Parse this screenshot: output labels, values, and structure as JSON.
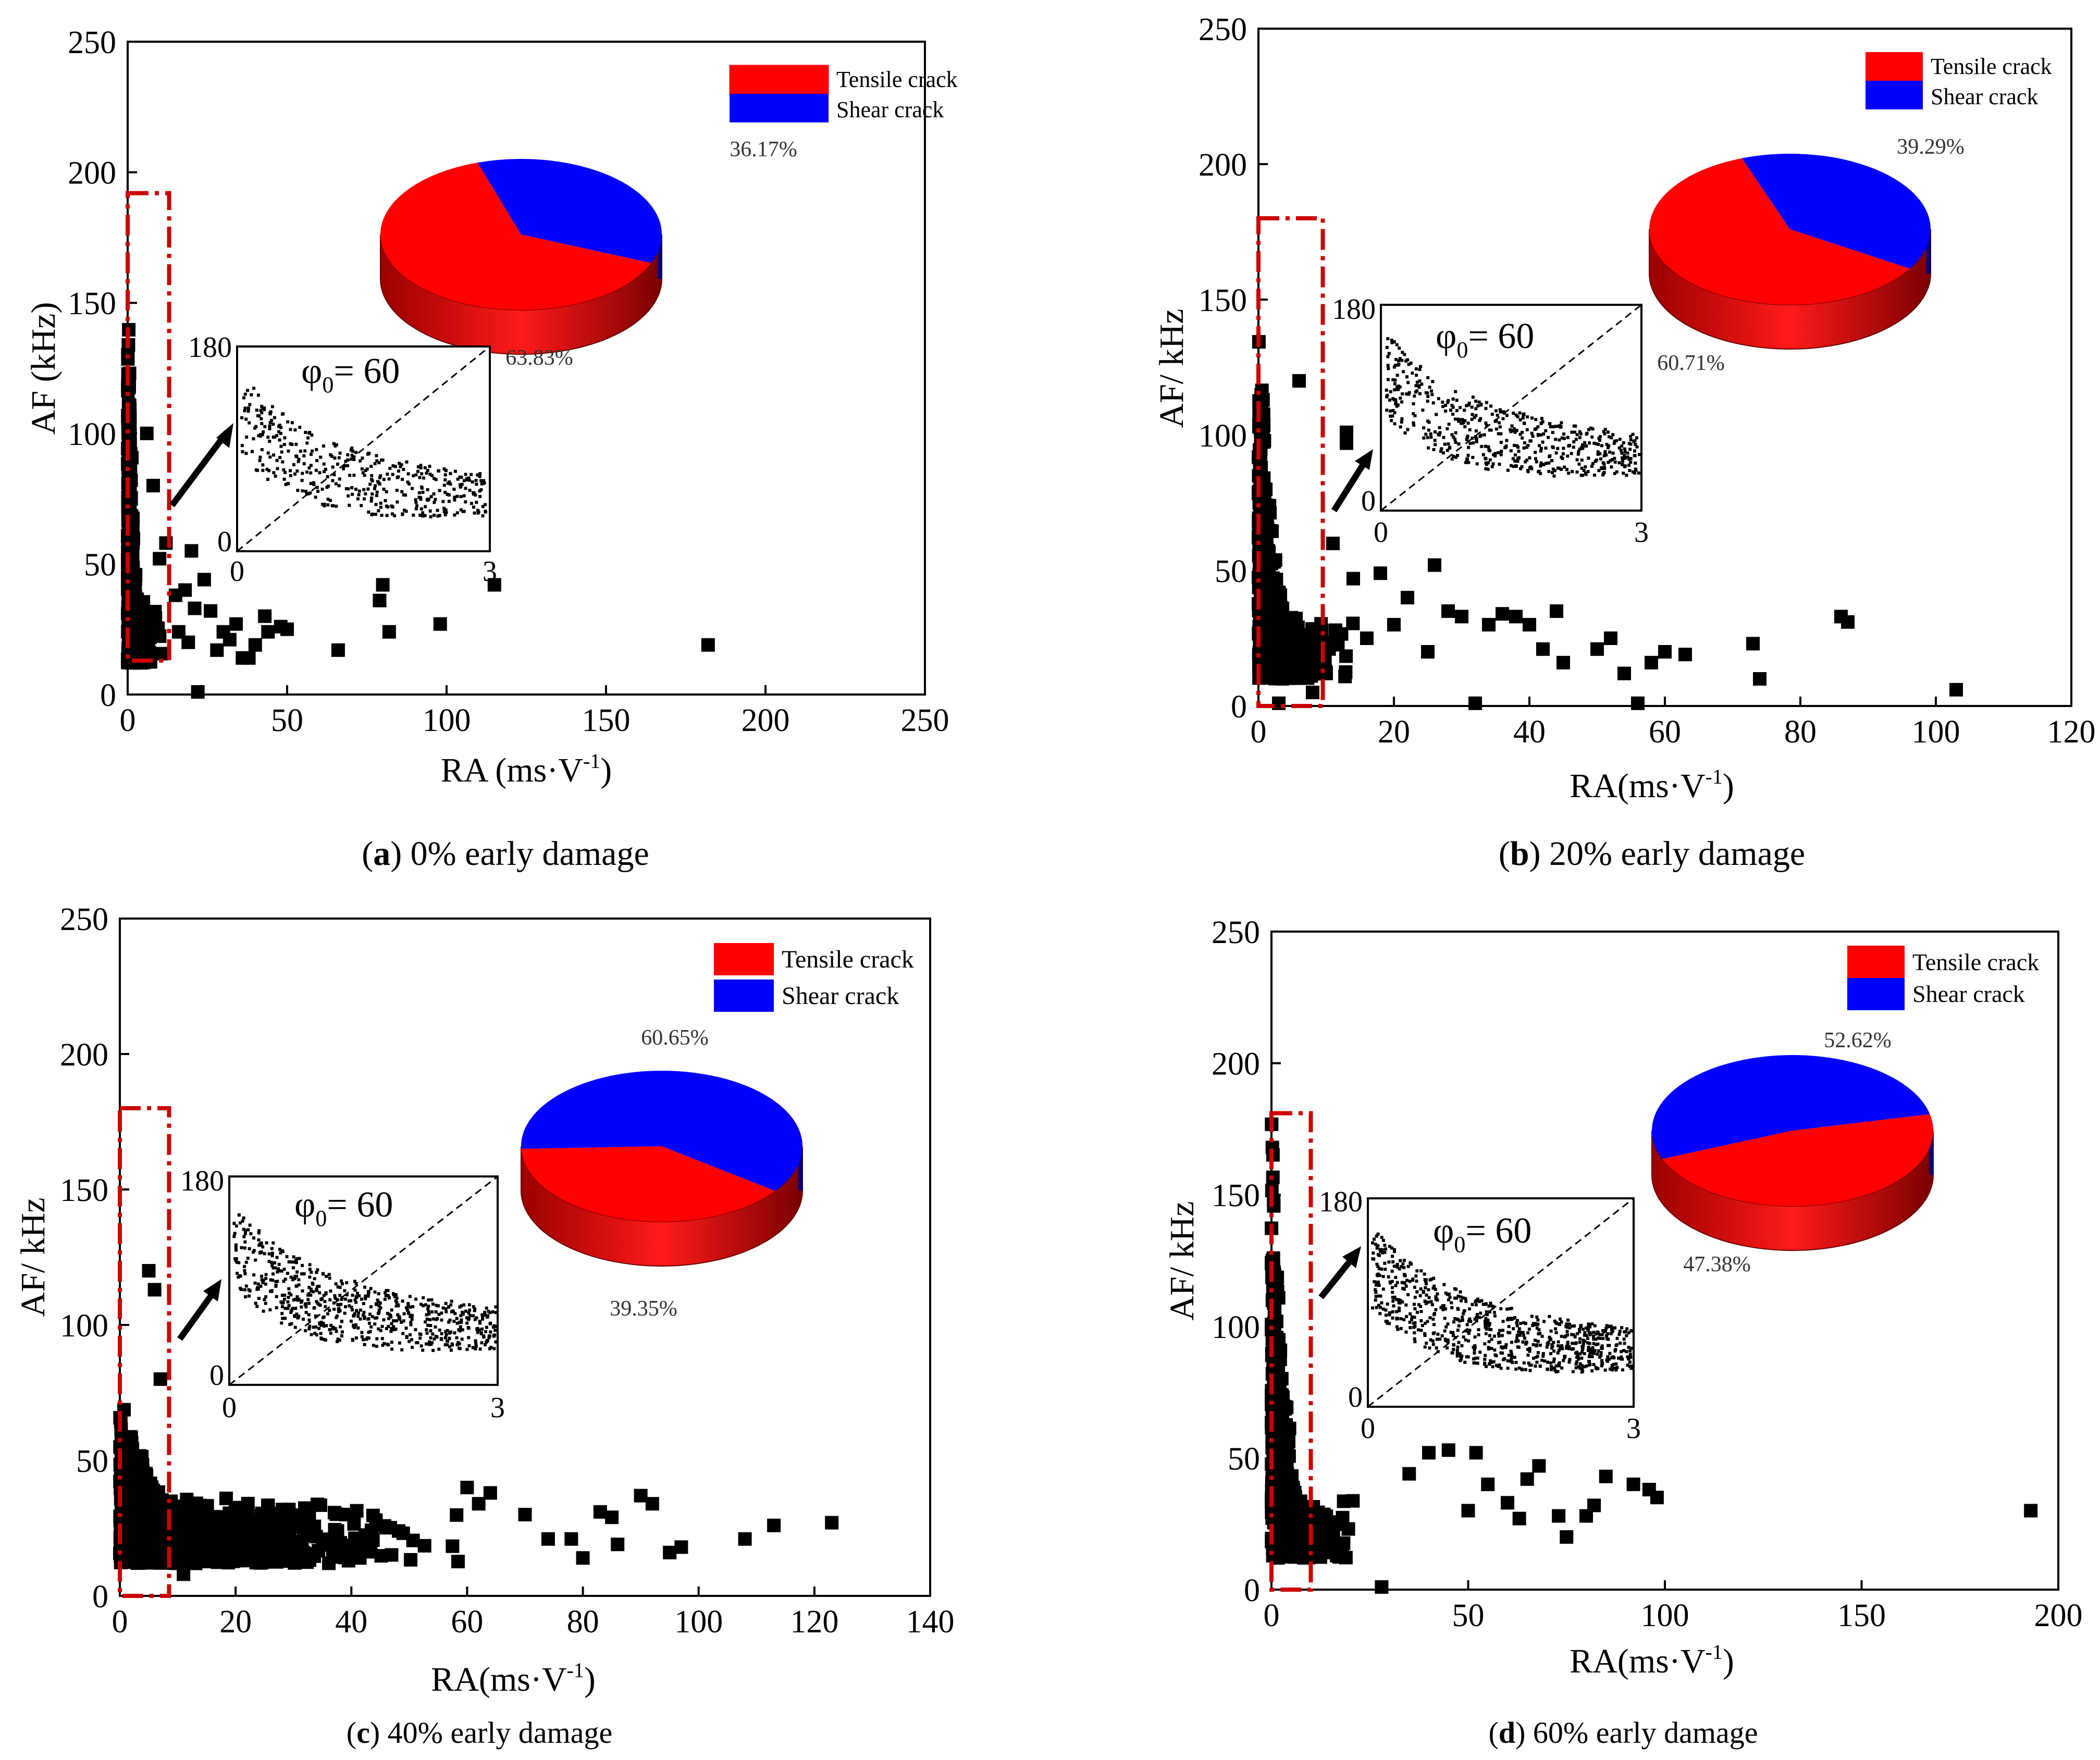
{
  "figure": {
    "legend": {
      "tensile": "Tensile crack",
      "shear": "Shear crack"
    },
    "colors": {
      "tensile": "#ff0000",
      "shear": "#0000ff",
      "markers": "#000000",
      "roi": "#cc0000"
    },
    "inset": {
      "label_base": "φ",
      "label_sub": "0",
      "label_value": "= 60",
      "y_top": "180",
      "y_bottom": "0",
      "x_left": "0",
      "x_right": "3"
    }
  },
  "chart_data": [
    {
      "type": "scatter",
      "panel": "a",
      "caption_letter": "a",
      "caption_text": "0% early damage",
      "xlabel": "RA (ms·V",
      "ylabel": "AF (kHz)",
      "xlim": [
        0,
        250
      ],
      "ylim": [
        0,
        250
      ],
      "xticks": [
        0,
        50,
        100,
        150,
        200,
        250
      ],
      "yticks": [
        0,
        50,
        100,
        150,
        200,
        250
      ],
      "roi": {
        "x": [
          0,
          13
        ],
        "y": [
          13,
          192
        ]
      },
      "pie": {
        "tensile_pct": 63.83,
        "shear_pct": 36.17,
        "tensile_label": "63.83%",
        "shear_label": "36.17%"
      },
      "scatter_points": [
        [
          22,
          1
        ],
        [
          28,
          17
        ],
        [
          30,
          24
        ],
        [
          32,
          21
        ],
        [
          34,
          27
        ],
        [
          36,
          14
        ],
        [
          38,
          14
        ],
        [
          40,
          19
        ],
        [
          43,
          30
        ],
        [
          44,
          24
        ],
        [
          48,
          26
        ],
        [
          50,
          25
        ],
        [
          66,
          17
        ],
        [
          79,
          36
        ],
        [
          80,
          42
        ],
        [
          82,
          24
        ],
        [
          98,
          27
        ],
        [
          115,
          42
        ],
        [
          182,
          19
        ],
        [
          15,
          38
        ],
        [
          18,
          40
        ],
        [
          20,
          55
        ],
        [
          24,
          44
        ],
        [
          26,
          32
        ],
        [
          12,
          58
        ],
        [
          10,
          52
        ],
        [
          8,
          80
        ],
        [
          6,
          100
        ],
        [
          16,
          24
        ],
        [
          19,
          20
        ],
        [
          21,
          33
        ]
      ],
      "dense_cluster": {
        "n": 520,
        "x_max": 14,
        "y_min": 12,
        "y_max": 200,
        "decay": 4.5
      }
    },
    {
      "type": "scatter",
      "panel": "b",
      "caption_letter": "b",
      "caption_text": "20% early damage",
      "xlabel": "RA(ms·V",
      "ylabel": "AF/ kHz",
      "xlim": [
        0,
        120
      ],
      "ylim": [
        0,
        250
      ],
      "xticks": [
        0,
        20,
        40,
        60,
        80,
        100,
        120
      ],
      "yticks": [
        0,
        50,
        100,
        150,
        200,
        250
      ],
      "roi": {
        "x": [
          0,
          9.5
        ],
        "y": [
          0,
          180
        ]
      },
      "pie": {
        "tensile_pct": 60.71,
        "shear_pct": 39.29,
        "tensile_label": "60.71%",
        "shear_label": "39.29%"
      },
      "scatter_points": [
        [
          3,
          1
        ],
        [
          8,
          5
        ],
        [
          10,
          12
        ],
        [
          16,
          25
        ],
        [
          20,
          30
        ],
        [
          25,
          20
        ],
        [
          28,
          35
        ],
        [
          30,
          33
        ],
        [
          32,
          1
        ],
        [
          34,
          30
        ],
        [
          36,
          34
        ],
        [
          38,
          33
        ],
        [
          40,
          30
        ],
        [
          42,
          21
        ],
        [
          44,
          35
        ],
        [
          45,
          16
        ],
        [
          50,
          21
        ],
        [
          52,
          25
        ],
        [
          54,
          12
        ],
        [
          56,
          1
        ],
        [
          58,
          16
        ],
        [
          60,
          20
        ],
        [
          63,
          19
        ],
        [
          73,
          23
        ],
        [
          74,
          10
        ],
        [
          86,
          33
        ],
        [
          87,
          31
        ],
        [
          103,
          6
        ],
        [
          13,
          101
        ],
        [
          13,
          97
        ],
        [
          6,
          120
        ],
        [
          14,
          47
        ],
        [
          18,
          49
        ],
        [
          22,
          40
        ],
        [
          26,
          52
        ],
        [
          11,
          60
        ]
      ],
      "dense_cluster": {
        "n": 700,
        "x_max": 20,
        "y_min": 10,
        "y_max": 165,
        "decay": 6
      }
    },
    {
      "type": "scatter",
      "panel": "c",
      "caption_letter": "c",
      "caption_text": "40% early damage",
      "xlabel": "RA(ms·V",
      "ylabel": "AF/ kHz",
      "xlim": [
        0,
        140
      ],
      "ylim": [
        0,
        250
      ],
      "xticks": [
        0,
        20,
        40,
        60,
        80,
        100,
        120,
        140
      ],
      "yticks": [
        0,
        50,
        100,
        150,
        200,
        250
      ],
      "roi": {
        "x": [
          0,
          8.5
        ],
        "y": [
          0,
          180
        ]
      },
      "pie": {
        "tensile_pct": 39.35,
        "shear_pct": 60.65,
        "tensile_label": "39.35%",
        "shear_label": "60.65%"
      },
      "scatter_points": [
        [
          78,
          21
        ],
        [
          80,
          14
        ],
        [
          83,
          31
        ],
        [
          85,
          29
        ],
        [
          86,
          19
        ],
        [
          90,
          37
        ],
        [
          92,
          34
        ],
        [
          95,
          16
        ],
        [
          97,
          18
        ],
        [
          108,
          21
        ],
        [
          113,
          26
        ],
        [
          123,
          27
        ],
        [
          5,
          120
        ],
        [
          6,
          113
        ],
        [
          7,
          80
        ],
        [
          11,
          8
        ],
        [
          60,
          40
        ],
        [
          62,
          34
        ],
        [
          64,
          38
        ],
        [
          70,
          30
        ],
        [
          74,
          21
        ]
      ],
      "dense_cluster": {
        "n": 1300,
        "x_max": 68,
        "y_min": 12,
        "y_max": 75,
        "decay": 25
      }
    },
    {
      "type": "scatter",
      "panel": "d",
      "caption_letter": "d",
      "caption_text": "60% early damage",
      "xlabel": "RA(ms·V",
      "ylabel": "AF/ kHz",
      "xlim": [
        0,
        200
      ],
      "ylim": [
        0,
        250
      ],
      "xticks": [
        0,
        50,
        100,
        150,
        200
      ],
      "yticks": [
        0,
        50,
        100,
        150,
        200,
        250
      ],
      "roi": {
        "x": [
          0,
          10
        ],
        "y": [
          0,
          181
        ]
      },
      "pie": {
        "tensile_pct": 47.38,
        "shear_pct": 52.62,
        "tensile_label": "47.38%",
        "shear_label": "52.62%"
      },
      "scatter_points": [
        [
          28,
          1
        ],
        [
          50,
          30
        ],
        [
          55,
          40
        ],
        [
          60,
          33
        ],
        [
          63,
          27
        ],
        [
          65,
          42
        ],
        [
          68,
          47
        ],
        [
          73,
          28
        ],
        [
          75,
          20
        ],
        [
          80,
          28
        ],
        [
          82,
          32
        ],
        [
          85,
          43
        ],
        [
          92,
          40
        ],
        [
          96,
          38
        ],
        [
          98,
          35
        ],
        [
          193,
          30
        ],
        [
          45,
          53
        ],
        [
          52,
          52
        ],
        [
          40,
          52
        ],
        [
          35,
          44
        ]
      ],
      "dense_cluster": {
        "n": 650,
        "x_max": 46,
        "y_min": 12,
        "y_max": 200,
        "decay": 10
      }
    }
  ]
}
